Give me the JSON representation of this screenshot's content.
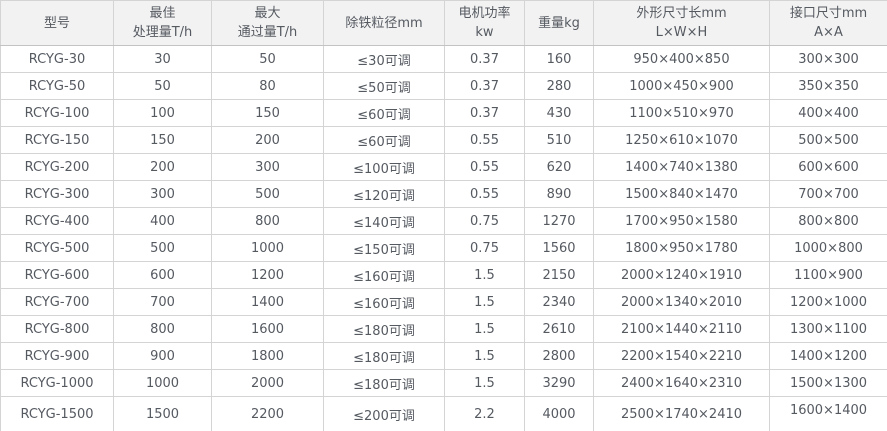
{
  "colors": {
    "header_bg": "#f2f2f2",
    "border": "#d4d4d4",
    "outer_border": "#c3c3c3",
    "text": "#555a61",
    "row_bg": "#ffffff"
  },
  "table": {
    "columns": [
      {
        "id": "model",
        "label_lines": [
          "型号"
        ]
      },
      {
        "id": "best-capacity",
        "label_lines": [
          "最佳",
          "处理量T/h"
        ]
      },
      {
        "id": "max-throughput",
        "label_lines": [
          "最大",
          "通过量T/h"
        ]
      },
      {
        "id": "iron-particle",
        "label_lines": [
          "除铁粒径mm"
        ]
      },
      {
        "id": "motor-power",
        "label_lines": [
          "电机功率",
          "kw"
        ]
      },
      {
        "id": "weight",
        "label_lines": [
          "重量kg"
        ]
      },
      {
        "id": "dimensions",
        "label_lines": [
          "外形尺寸长mm",
          "L×W×H"
        ]
      },
      {
        "id": "interface-size",
        "label_lines": [
          "接口尺寸mm",
          "A×A"
        ]
      }
    ],
    "rows": [
      [
        "RCYG-30",
        "30",
        "50",
        "≤30可调",
        "0.37",
        "160",
        "950×400×850",
        "300×300"
      ],
      [
        "RCYG-50",
        "50",
        "80",
        "≤50可调",
        "0.37",
        "280",
        "1000×450×900",
        "350×350"
      ],
      [
        "RCYG-100",
        "100",
        "150",
        "≤60可调",
        "0.37",
        "430",
        "1100×510×970",
        "400×400"
      ],
      [
        "RCYG-150",
        "150",
        "200",
        "≤60可调",
        "0.55",
        "510",
        "1250×610×1070",
        "500×500"
      ],
      [
        "RCYG-200",
        "200",
        "300",
        "≤100可调",
        "0.55",
        "620",
        "1400×740×1380",
        "600×600"
      ],
      [
        "RCYG-300",
        "300",
        "500",
        "≤120可调",
        "0.55",
        "890",
        "1500×840×1470",
        "700×700"
      ],
      [
        "RCYG-400",
        "400",
        "800",
        "≤140可调",
        "0.75",
        "1270",
        "1700×950×1580",
        "800×800"
      ],
      [
        "RCYG-500",
        "500",
        "1000",
        "≤150可调",
        "0.75",
        "1560",
        "1800×950×1780",
        "1000×800"
      ],
      [
        "RCYG-600",
        "600",
        "1200",
        "≤160可调",
        "1.5",
        "2150",
        "2000×1240×1910",
        "1100×900"
      ],
      [
        "RCYG-700",
        "700",
        "1400",
        "≤160可调",
        "1.5",
        "2340",
        "2000×1340×2010",
        "1200×1000"
      ],
      [
        "RCYG-800",
        "800",
        "1600",
        "≤180可调",
        "1.5",
        "2610",
        "2100×1440×2110",
        "1300×1100"
      ],
      [
        "RCYG-900",
        "900",
        "1800",
        "≤180可调",
        "1.5",
        "2800",
        "2200×1540×2210",
        "1400×1200"
      ],
      [
        "RCYG-1000",
        "1000",
        "2000",
        "≤180可调",
        "1.5",
        "3290",
        "2400×1640×2310",
        "1500×1300"
      ],
      [
        "RCYG-1500",
        "1500",
        "2200",
        "≤200可调",
        "2.2",
        "4000",
        "2500×1740×2410",
        "1600×1400"
      ]
    ]
  }
}
